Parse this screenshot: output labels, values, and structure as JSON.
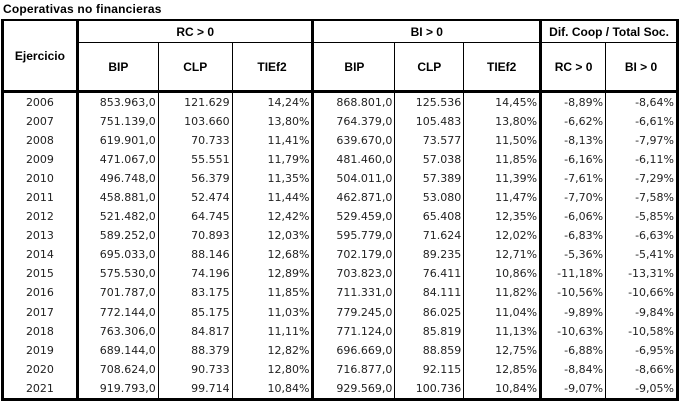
{
  "title": "Coperativas no financieras",
  "headers": {
    "ejercicio": "Ejercicio",
    "groups": [
      "RC > 0",
      "BI > 0",
      "Dif. Coop / Total Soc."
    ],
    "sub": [
      "BIP",
      "CLP",
      "TIEf2",
      "BIP",
      "CLP",
      "TIEf2",
      "RC > 0",
      "BI > 0"
    ]
  },
  "rows": [
    [
      "2006",
      "853.963,0",
      "121.629",
      "14,24%",
      "868.801,0",
      "125.536",
      "14,45%",
      "-8,89%",
      "-8,64%"
    ],
    [
      "2007",
      "751.139,0",
      "103.660",
      "13,80%",
      "764.379,0",
      "105.483",
      "13,80%",
      "-6,62%",
      "-6,61%"
    ],
    [
      "2008",
      "619.901,0",
      "70.733",
      "11,41%",
      "639.670,0",
      "73.577",
      "11,50%",
      "-8,13%",
      "-7,97%"
    ],
    [
      "2009",
      "471.067,0",
      "55.551",
      "11,79%",
      "481.460,0",
      "57.038",
      "11,85%",
      "-6,16%",
      "-6,11%"
    ],
    [
      "2010",
      "496.748,0",
      "56.379",
      "11,35%",
      "504.011,0",
      "57.389",
      "11,39%",
      "-7,61%",
      "-7,29%"
    ],
    [
      "2011",
      "458.881,0",
      "52.474",
      "11,44%",
      "462.871,0",
      "53.080",
      "11,47%",
      "-7,70%",
      "-7,58%"
    ],
    [
      "2012",
      "521.482,0",
      "64.745",
      "12,42%",
      "529.459,0",
      "65.408",
      "12,35%",
      "-6,06%",
      "-5,85%"
    ],
    [
      "2013",
      "589.252,0",
      "70.893",
      "12,03%",
      "595.779,0",
      "71.624",
      "12,02%",
      "-6,83%",
      "-6,63%"
    ],
    [
      "2014",
      "695.033,0",
      "88.146",
      "12,68%",
      "702.179,0",
      "89.235",
      "12,71%",
      "-5,36%",
      "-5,41%"
    ],
    [
      "2015",
      "575.530,0",
      "74.196",
      "12,89%",
      "703.823,0",
      "76.411",
      "10,86%",
      "-11,18%",
      "-13,31%"
    ],
    [
      "2016",
      "701.787,0",
      "83.175",
      "11,85%",
      "711.331,0",
      "84.111",
      "11,82%",
      "-10,56%",
      "-10,66%"
    ],
    [
      "2017",
      "772.144,0",
      "85.175",
      "11,03%",
      "779.245,0",
      "86.025",
      "11,04%",
      "-9,89%",
      "-9,84%"
    ],
    [
      "2018",
      "763.306,0",
      "84.817",
      "11,11%",
      "771.124,0",
      "85.819",
      "11,13%",
      "-10,63%",
      "-10,58%"
    ],
    [
      "2019",
      "689.144,0",
      "88.379",
      "12,82%",
      "696.669,0",
      "88.859",
      "12,75%",
      "-6,88%",
      "-6,95%"
    ],
    [
      "2020",
      "708.624,0",
      "90.733",
      "12,80%",
      "716.877,0",
      "92.115",
      "12,85%",
      "-8,84%",
      "-8,66%"
    ],
    [
      "2021",
      "919.793,0",
      "99.714",
      "10,84%",
      "929.569,0",
      "100.736",
      "10,84%",
      "-9,07%",
      "-9,05%"
    ]
  ]
}
